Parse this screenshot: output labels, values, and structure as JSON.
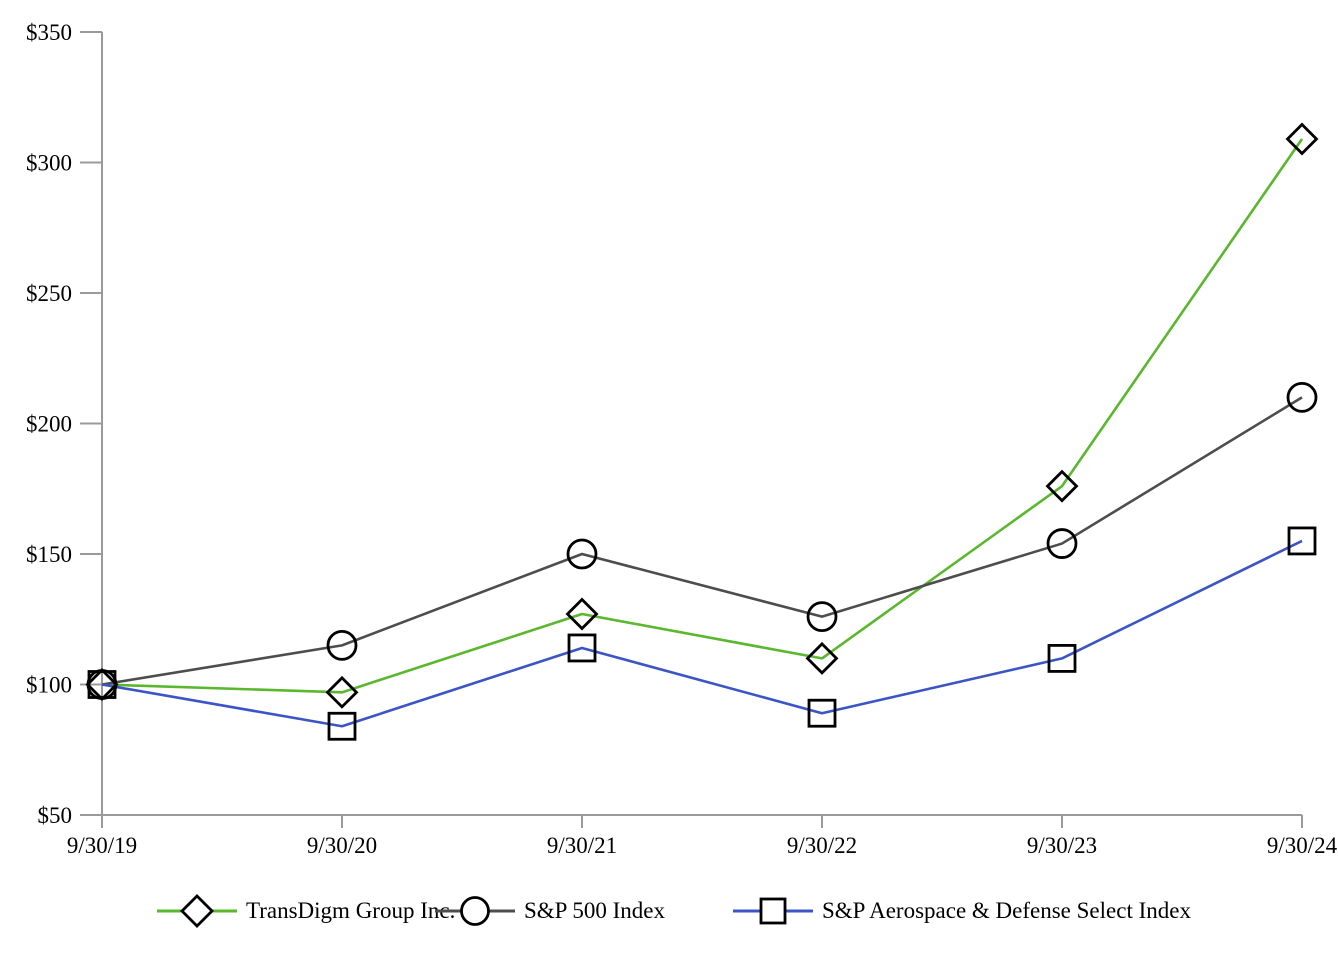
{
  "chart_data": {
    "type": "line",
    "title": "",
    "categories": [
      "9/30/19",
      "9/30/20",
      "9/30/21",
      "9/30/22",
      "9/30/23",
      "9/30/24"
    ],
    "series": [
      {
        "name": "TransDigm Group Inc.",
        "marker": "diamond",
        "color": "#5ab72e",
        "values": [
          100,
          97,
          127,
          110,
          176,
          309
        ]
      },
      {
        "name": "S&P 500 Index",
        "marker": "circle",
        "color": "#4d4d4d",
        "values": [
          100,
          115,
          150,
          126,
          154,
          210
        ]
      },
      {
        "name": "S&P Aerospace & Defense Select Index",
        "marker": "square",
        "color": "#3c55c6",
        "values": [
          100,
          84,
          114,
          89,
          110,
          155
        ]
      }
    ],
    "y_axis": {
      "min": 50,
      "max": 350,
      "step": 50,
      "tick_labels": [
        "$50",
        "$100",
        "$150",
        "$200",
        "$250",
        "$300",
        "$350"
      ]
    },
    "x_axis": {
      "tick_labels": [
        "9/30/19",
        "9/30/20",
        "9/30/21",
        "9/30/22",
        "9/30/23",
        "9/30/24"
      ]
    },
    "axis_color": "#9a9a9a",
    "marker_stroke": "#000000",
    "background_color": "#ffffff",
    "grid": "off",
    "legend_position": "bottom"
  }
}
